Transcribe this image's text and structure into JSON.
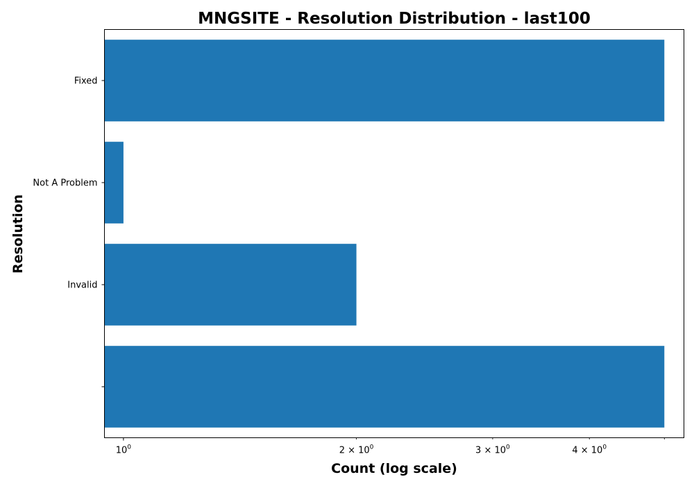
{
  "chart_data": {
    "type": "bar",
    "orientation": "horizontal",
    "title": "MNGSITE - Resolution Distribution - last100",
    "xlabel": "Count (log scale)",
    "ylabel": "Resolution",
    "x_scale": "log",
    "xlim": [
      0.945,
      5.3
    ],
    "categories": [
      "",
      "Invalid",
      "Not A Problem",
      "Fixed"
    ],
    "values": [
      5,
      2,
      1,
      5
    ],
    "bar_color": "#1f77b4",
    "grid": false,
    "legend": "none",
    "x_major_ticks": [
      {
        "value": 1,
        "base": "10",
        "exponent": "0"
      }
    ],
    "x_minor_ticks": [
      {
        "value": 2,
        "coef": "2 × 10",
        "exponent": "0"
      },
      {
        "value": 3,
        "coef": "3 × 10",
        "exponent": "0"
      },
      {
        "value": 4,
        "coef": "4 × 10",
        "exponent": "0"
      },
      {
        "value": 5,
        "coef": "",
        "exponent": ""
      }
    ]
  }
}
